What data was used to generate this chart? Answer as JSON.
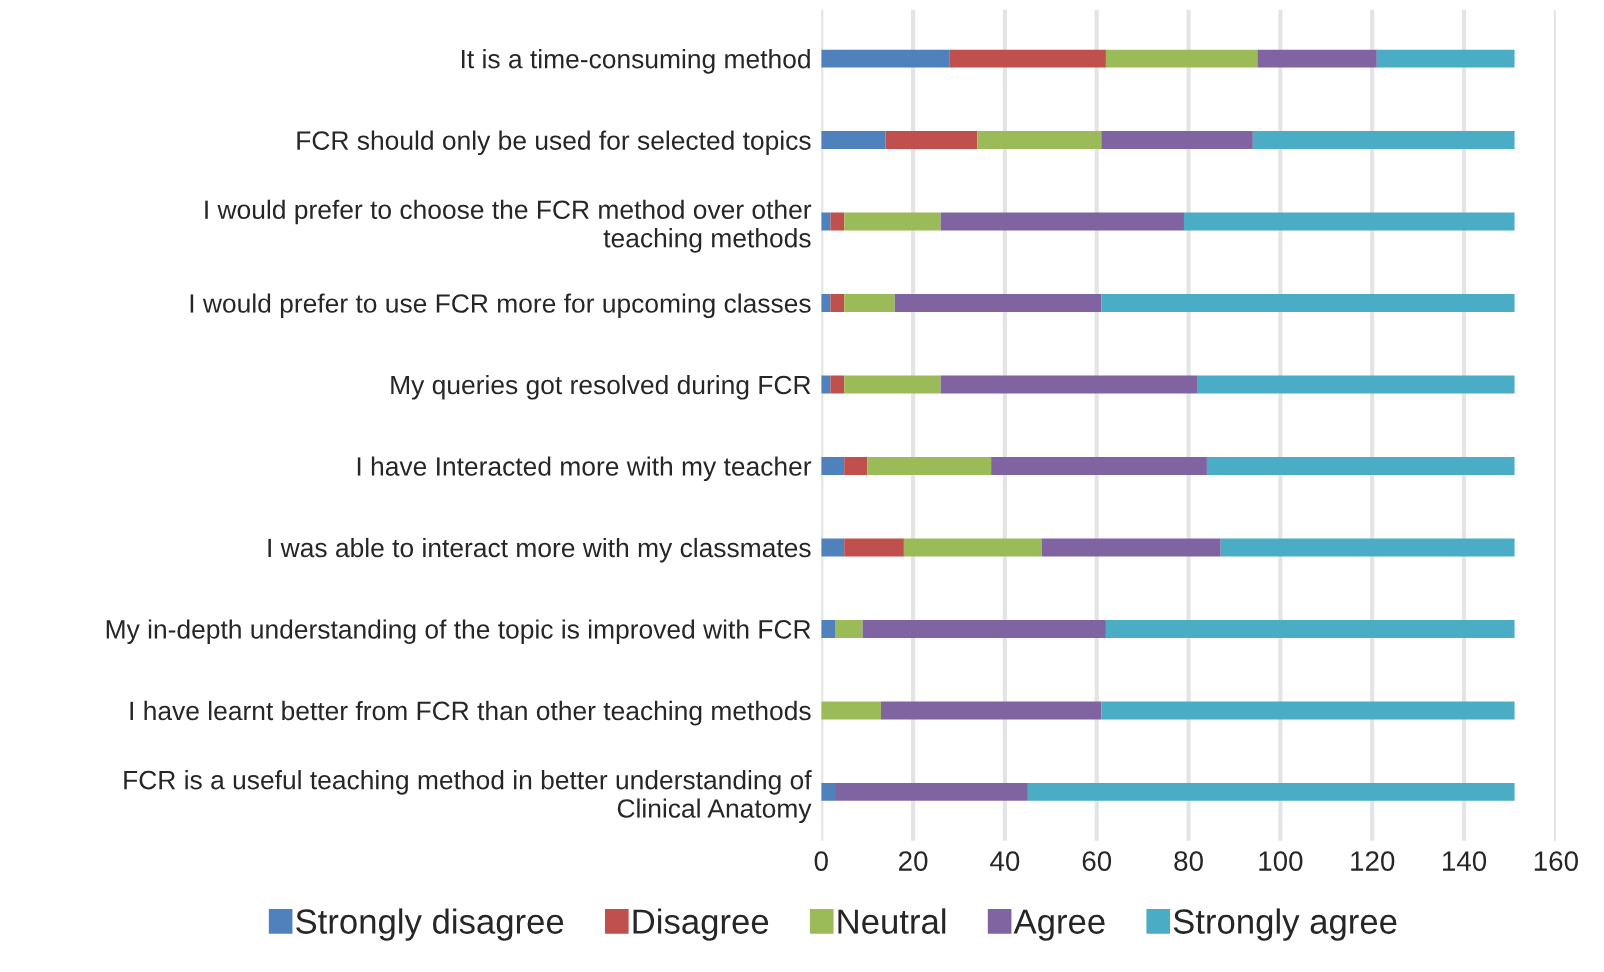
{
  "chart_data": {
    "type": "bar",
    "orientation": "horizontal",
    "stacked": true,
    "categories": [
      "It is a time-consuming method",
      "FCR should only be used for selected topics",
      "I would prefer to choose the FCR method over other\nteaching methods",
      "I would prefer to use FCR more for upcoming classes",
      "My queries got resolved during FCR",
      "I have Interacted more with my teacher",
      "I was able to interact more with my classmates",
      "My in-depth understanding of the topic is improved with FCR",
      "I have learnt better from FCR than other teaching methods",
      "FCR is a useful teaching method in better understanding of\nClinical Anatomy"
    ],
    "series": [
      {
        "name": "Strongly disagree",
        "color": "#4f81bd",
        "values": [
          28,
          14,
          2,
          2,
          2,
          5,
          5,
          3,
          0,
          3
        ]
      },
      {
        "name": "Disagree",
        "color": "#c0504d",
        "values": [
          34,
          20,
          3,
          3,
          3,
          5,
          13,
          0,
          0,
          0
        ]
      },
      {
        "name": "Neutral",
        "color": "#9bbb59",
        "values": [
          33,
          27,
          21,
          11,
          21,
          27,
          30,
          6,
          13,
          0
        ]
      },
      {
        "name": "Agree",
        "color": "#8064a2",
        "values": [
          26,
          33,
          53,
          45,
          56,
          47,
          39,
          53,
          48,
          42
        ]
      },
      {
        "name": "Strongly agree",
        "color": "#4bacc6",
        "values": [
          30,
          57,
          72,
          90,
          69,
          67,
          64,
          89,
          90,
          106
        ]
      }
    ],
    "xlim": [
      0,
      160
    ],
    "xticks": [
      0,
      20,
      40,
      60,
      80,
      100,
      120,
      140,
      160
    ],
    "grid": "x",
    "legend": "bottom"
  }
}
